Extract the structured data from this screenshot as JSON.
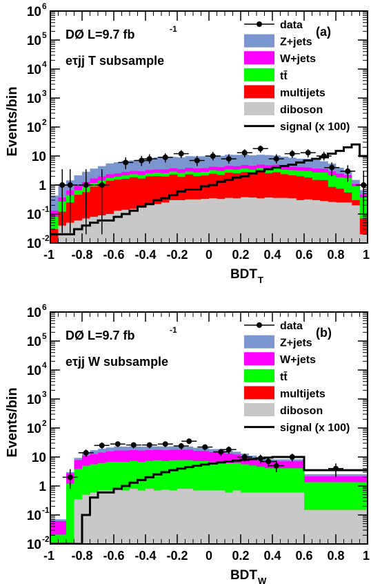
{
  "chart_data": [
    {
      "type": "bar",
      "panel_label": "(a)",
      "experiment": "DØ L=9.7 fb",
      "lumi_exp": "-1",
      "subsample": "eτjj T subsample",
      "xlabel_main": "BDT",
      "xlabel_sub": "T",
      "ylabel": "Events/bin",
      "log_y": true,
      "xlim": [
        -1,
        1
      ],
      "ylim": [
        0.01,
        1000000
      ],
      "x_ticks": [
        "-1",
        "-0.8",
        "-0.6",
        "-0.4",
        "-0.2",
        "0",
        "0.2",
        "0.4",
        "0.6",
        "0.8",
        "1"
      ],
      "y_ticks": [
        {
          "base": "10",
          "exp": "-2"
        },
        {
          "base": "10",
          "exp": "-1"
        },
        {
          "base": "1",
          "exp": ""
        },
        {
          "base": "10",
          "exp": ""
        },
        {
          "base": "10",
          "exp": "2"
        },
        {
          "base": "10",
          "exp": "3"
        },
        {
          "base": "10",
          "exp": "4"
        },
        {
          "base": "10",
          "exp": "5"
        },
        {
          "base": "10",
          "exp": "6"
        }
      ],
      "legend": [
        {
          "label": "data",
          "kind": "marker"
        },
        {
          "label": "Z+jets",
          "kind": "fill",
          "color": "#7b96cf"
        },
        {
          "label": "W+jets",
          "kind": "fill",
          "color": "#ff00ff"
        },
        {
          "label": "tt̄",
          "kind": "fill",
          "color": "#00ff00"
        },
        {
          "label": "multijets",
          "kind": "fill",
          "color": "#ff0000"
        },
        {
          "label": "diboson",
          "kind": "fill",
          "color": "#c8c8c8"
        },
        {
          "label": "signal (x 100)",
          "kind": "line",
          "color": "#000000"
        }
      ],
      "bins": [
        -1,
        -0.95,
        -0.9,
        -0.85,
        -0.8,
        -0.75,
        -0.7,
        -0.65,
        -0.6,
        -0.55,
        -0.5,
        -0.45,
        -0.4,
        -0.35,
        -0.3,
        -0.25,
        -0.2,
        -0.15,
        -0.1,
        -0.05,
        0,
        0.05,
        0.1,
        0.15,
        0.2,
        0.25,
        0.3,
        0.35,
        0.4,
        0.45,
        0.5,
        0.55,
        0.6,
        0.65,
        0.7,
        0.75,
        0.8,
        0.85,
        0.9,
        0.95,
        1
      ],
      "stack": [
        {
          "name": "diboson",
          "color": "#c8c8c8",
          "values": [
            0.01,
            0.04,
            0.05,
            0.06,
            0.07,
            0.08,
            0.09,
            0.1,
            0.13,
            0.14,
            0.15,
            0.17,
            0.2,
            0.22,
            0.25,
            0.3,
            0.3,
            0.32,
            0.32,
            0.33,
            0.35,
            0.33,
            0.36,
            0.35,
            0.38,
            0.37,
            0.35,
            0.37,
            0.36,
            0.36,
            0.35,
            0.3,
            0.32,
            0.3,
            0.28,
            0.26,
            0.25,
            0.25,
            0.2,
            0.02
          ]
        },
        {
          "name": "multijets",
          "color": "#ff0000",
          "values": [
            0.02,
            0.08,
            0.2,
            0.4,
            0.5,
            0.8,
            1.0,
            1.3,
            1.4,
            1.5,
            1.7,
            1.5,
            1.8,
            1.8,
            1.7,
            2.0,
            1.6,
            2.0,
            1.7,
            1.8,
            2.1,
            1.9,
            2.3,
            2.2,
            2.4,
            2.1,
            2.6,
            2.2,
            2.4,
            2.0,
            1.8,
            1.7,
            1.5,
            1.2,
            1.2,
            0.6,
            0.5,
            0.3,
            0.1,
            0.05
          ]
        },
        {
          "name": "ttbar",
          "color": "#00ff00",
          "values": [
            0.05,
            0.15,
            0.2,
            0.2,
            0.3,
            0.3,
            0.35,
            0.35,
            0.4,
            0.5,
            0.5,
            0.5,
            0.5,
            0.6,
            0.6,
            0.6,
            0.7,
            0.6,
            0.7,
            0.7,
            0.8,
            0.8,
            0.8,
            0.8,
            0.9,
            0.9,
            0.9,
            1.0,
            1.0,
            1.0,
            1.1,
            1.1,
            1.2,
            1.2,
            1.2,
            1.3,
            1.1,
            1.2,
            0.6,
            0.3
          ]
        },
        {
          "name": "W+jets",
          "color": "#ff00ff",
          "values": [
            0.05,
            0.1,
            0.2,
            0.3,
            0.4,
            0.5,
            0.55,
            0.6,
            0.6,
            0.7,
            0.7,
            0.8,
            0.8,
            0.8,
            0.9,
            0.9,
            0.9,
            1.0,
            1.0,
            1.0,
            1.0,
            1.1,
            1.1,
            1.1,
            1.2,
            1.2,
            1.2,
            1.2,
            1.2,
            1.1,
            1.0,
            1.0,
            1.0,
            1.0,
            0.9,
            0.8,
            0.6,
            0.4,
            0.2,
            0.1
          ]
        },
        {
          "name": "Z+jets",
          "color": "#7b96cf",
          "values": [
            0.3,
            0.6,
            0.8,
            1.2,
            1.6,
            2.0,
            2.5,
            3.2,
            3.5,
            4.0,
            4.0,
            4.5,
            5.0,
            5.5,
            5.5,
            5.5,
            5.5,
            6.0,
            6.0,
            6.0,
            6.0,
            6.0,
            6.5,
            6.5,
            6.5,
            6.0,
            6.0,
            6.0,
            5.5,
            5.0,
            4.5,
            4.0,
            4.0,
            3.5,
            3.0,
            2.5,
            1.5,
            0.8,
            0.4,
            0.2
          ]
        }
      ],
      "signal": [
        0.02,
        0.02,
        0.02,
        0.03,
        0.04,
        0.05,
        0.06,
        0.06,
        0.08,
        0.1,
        0.13,
        0.18,
        0.22,
        0.3,
        0.35,
        0.45,
        0.6,
        0.7,
        0.7,
        0.9,
        1.0,
        1.3,
        1.5,
        1.8,
        2.0,
        2.5,
        3.0,
        3.5,
        4.0,
        4.5,
        5.0,
        6.0,
        7.0,
        8.0,
        9.0,
        12,
        15,
        20,
        25,
        10
      ],
      "data": [
        {
          "x": -0.925,
          "y": 1.0,
          "lo": 0.02,
          "hi": 3.5
        },
        {
          "x": -0.875,
          "y": 1.0,
          "lo": 0.02,
          "hi": 3.5
        },
        {
          "x": -0.775,
          "y": 1.0,
          "lo": 0.02,
          "hi": 3.5
        },
        {
          "x": -0.675,
          "y": 1.0,
          "lo": 0.02,
          "hi": 3.5
        },
        {
          "x": -0.525,
          "y": 6,
          "lo": 3.5,
          "hi": 9
        },
        {
          "x": -0.425,
          "y": 7,
          "lo": 4.5,
          "hi": 10
        },
        {
          "x": -0.375,
          "y": 8,
          "lo": 5.5,
          "hi": 11.5
        },
        {
          "x": -0.275,
          "y": 9,
          "lo": 6,
          "hi": 12.5
        },
        {
          "x": -0.175,
          "y": 12,
          "lo": 8.5,
          "hi": 16
        },
        {
          "x": -0.075,
          "y": 7,
          "lo": 4.5,
          "hi": 10
        },
        {
          "x": 0.025,
          "y": 10,
          "lo": 7,
          "hi": 14
        },
        {
          "x": 0.125,
          "y": 8,
          "lo": 5.5,
          "hi": 11.5
        },
        {
          "x": 0.225,
          "y": 13,
          "lo": 9,
          "hi": 17
        },
        {
          "x": 0.325,
          "y": 18,
          "lo": 13,
          "hi": 23
        },
        {
          "x": 0.425,
          "y": 8,
          "lo": 5.5,
          "hi": 11.5
        },
        {
          "x": 0.525,
          "y": 12,
          "lo": 8.5,
          "hi": 16
        },
        {
          "x": 0.625,
          "y": 13,
          "lo": 9,
          "hi": 17
        },
        {
          "x": 0.725,
          "y": 10,
          "lo": 7,
          "hi": 14
        },
        {
          "x": 0.775,
          "y": 4,
          "lo": 2,
          "hi": 6
        },
        {
          "x": 0.875,
          "y": 3,
          "lo": 1.3,
          "hi": 4.8
        },
        {
          "x": 0.975,
          "y": 1.0,
          "lo": 0.1,
          "hi": 3
        }
      ]
    },
    {
      "type": "bar",
      "panel_label": "(b)",
      "experiment": "DØ L=9.7 fb",
      "lumi_exp": "-1",
      "subsample": "eτjj W subsample",
      "xlabel_main": "BDT",
      "xlabel_sub": "W",
      "ylabel": "Events/bin",
      "log_y": true,
      "xlim": [
        -1,
        1
      ],
      "ylim": [
        0.01,
        1000000
      ],
      "x_ticks": [
        "-1",
        "-0.8",
        "-0.6",
        "-0.4",
        "-0.2",
        "0",
        "0.2",
        "0.4",
        "0.6",
        "0.8",
        "1"
      ],
      "y_ticks": [
        {
          "base": "10",
          "exp": "-2"
        },
        {
          "base": "10",
          "exp": "-1"
        },
        {
          "base": "1",
          "exp": ""
        },
        {
          "base": "10",
          "exp": ""
        },
        {
          "base": "10",
          "exp": "2"
        },
        {
          "base": "10",
          "exp": "3"
        },
        {
          "base": "10",
          "exp": "4"
        },
        {
          "base": "10",
          "exp": "5"
        },
        {
          "base": "10",
          "exp": "6"
        }
      ],
      "legend": [
        {
          "label": "data",
          "kind": "marker"
        },
        {
          "label": "Z+jets",
          "kind": "fill",
          "color": "#7b96cf"
        },
        {
          "label": "W+jets",
          "kind": "fill",
          "color": "#ff00ff"
        },
        {
          "label": "tt̄",
          "kind": "fill",
          "color": "#00ff00"
        },
        {
          "label": "multijets",
          "kind": "fill",
          "color": "#ff0000"
        },
        {
          "label": "diboson",
          "kind": "fill",
          "color": "#c8c8c8"
        },
        {
          "label": "signal (x 100)",
          "kind": "line",
          "color": "#000000"
        }
      ],
      "bins": [
        -1,
        -0.9,
        -0.85,
        -0.8,
        -0.75,
        -0.7,
        -0.65,
        -0.6,
        -0.55,
        -0.5,
        -0.45,
        -0.4,
        -0.35,
        -0.3,
        -0.25,
        -0.2,
        -0.15,
        -0.1,
        -0.05,
        0,
        0.05,
        0.1,
        0.15,
        0.2,
        0.25,
        0.3,
        0.35,
        0.4,
        0.6,
        1
      ],
      "stack": [
        {
          "name": "diboson",
          "color": "#c8c8c8",
          "values": [
            0.01,
            0.01,
            0.35,
            0.5,
            0.6,
            0.7,
            0.7,
            0.8,
            0.7,
            0.8,
            0.7,
            0.8,
            0.7,
            0.75,
            0.7,
            0.8,
            0.8,
            0.7,
            0.7,
            0.7,
            0.7,
            0.6,
            0.7,
            0.6,
            0.6,
            0.6,
            0.6,
            0.6,
            0.15
          ]
        },
        {
          "name": "multijets",
          "color": "#ff0000",
          "values": [
            0.001,
            0.001,
            0.001,
            0.001,
            0.001,
            0.001,
            0.001,
            0.001,
            0.001,
            0.001,
            0.001,
            0.001,
            0.001,
            0.001,
            0.001,
            0.001,
            0.001,
            0.001,
            0.001,
            0.001,
            0.001,
            0.001,
            0.001,
            0.001,
            0.001,
            0.001,
            0.001,
            0.001,
            0.001
          ]
        },
        {
          "name": "ttbar",
          "color": "#00ff00",
          "values": [
            0.01,
            1.2,
            3.5,
            4.5,
            5,
            5.5,
            6,
            6,
            6,
            6.5,
            6,
            6.5,
            7,
            6.5,
            7,
            7,
            7,
            6.5,
            6.5,
            6,
            6,
            5.5,
            5.5,
            5,
            4.5,
            4,
            3.5,
            3.5,
            1.2
          ]
        },
        {
          "name": "W+jets",
          "color": "#ff00ff",
          "values": [
            0.04,
            1.5,
            4,
            6,
            7,
            8,
            9,
            10,
            10,
            10,
            10,
            10,
            10,
            10,
            10,
            10,
            10,
            9,
            9,
            8,
            8,
            7,
            6,
            5,
            4,
            3,
            3,
            3,
            0.8
          ]
        },
        {
          "name": "Z+jets",
          "color": "#7b96cf",
          "values": [
            0.01,
            0.3,
            1.5,
            3.5,
            4.5,
            5,
            5.5,
            6,
            6,
            6,
            6,
            6,
            5.5,
            5.5,
            5.5,
            5,
            5,
            4.5,
            4.5,
            4,
            4,
            3.5,
            3,
            2.5,
            2,
            1.5,
            1.3,
            1.2,
            0.4
          ]
        }
      ],
      "signal": [
        0.001,
        0.001,
        0.001,
        0.1,
        0.4,
        0.6,
        0.6,
        0.8,
        1.0,
        1.3,
        1.6,
        2.0,
        2.5,
        3.0,
        3.5,
        4.0,
        4.5,
        5.0,
        5.5,
        6.0,
        6.5,
        7.0,
        7.5,
        8.0,
        8.5,
        9.0,
        9.5,
        10.0,
        3.5
      ],
      "data": [
        {
          "x": -0.875,
          "y": 2,
          "lo": 0.8,
          "hi": 3.8
        },
        {
          "x": -0.775,
          "y": 14,
          "lo": 10,
          "hi": 18
        },
        {
          "x": -0.675,
          "y": 25,
          "lo": 19,
          "hi": 31
        },
        {
          "x": -0.575,
          "y": 28,
          "lo": 22,
          "hi": 34
        },
        {
          "x": -0.475,
          "y": 26,
          "lo": 20,
          "hi": 32
        },
        {
          "x": -0.375,
          "y": 26,
          "lo": 20,
          "hi": 32
        },
        {
          "x": -0.275,
          "y": 28,
          "lo": 22,
          "hi": 34
        },
        {
          "x": -0.175,
          "y": 24,
          "lo": 18,
          "hi": 30
        },
        {
          "x": -0.125,
          "y": 35,
          "lo": 28,
          "hi": 42
        },
        {
          "x": -0.025,
          "y": 22,
          "lo": 17,
          "hi": 27
        },
        {
          "x": 0.075,
          "y": 15,
          "lo": 11,
          "hi": 19
        },
        {
          "x": 0.125,
          "y": 18,
          "lo": 13,
          "hi": 23
        },
        {
          "x": 0.225,
          "y": 10,
          "lo": 7,
          "hi": 13
        },
        {
          "x": 0.325,
          "y": 9,
          "lo": 6,
          "hi": 12
        },
        {
          "x": 0.375,
          "y": 7,
          "lo": 4.5,
          "hi": 10
        },
        {
          "x": 0.425,
          "y": 5,
          "lo": 3,
          "hi": 7.5
        },
        {
          "x": 0.525,
          "y": 10,
          "lo": 7,
          "hi": 13
        },
        {
          "x": 0.8,
          "y": 4,
          "lo": 2,
          "hi": 6
        }
      ]
    }
  ]
}
